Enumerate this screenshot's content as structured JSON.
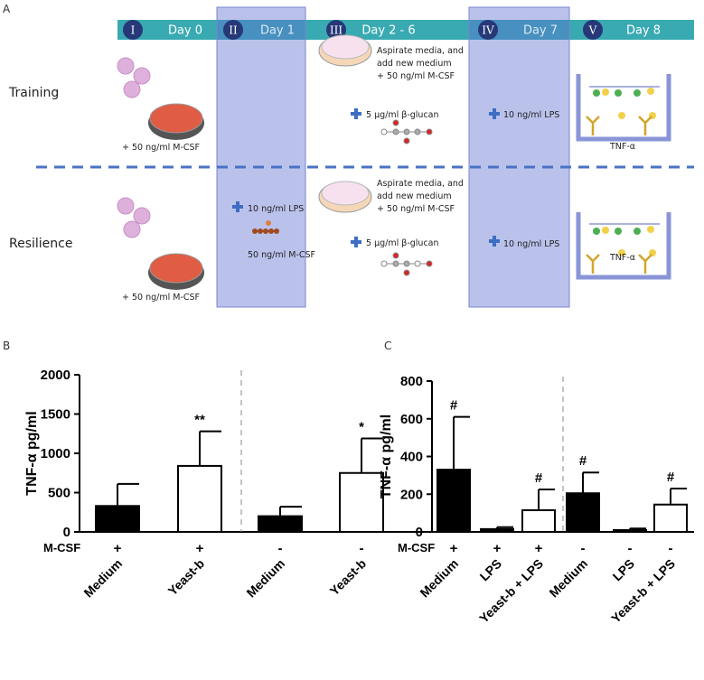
{
  "diagram": {
    "panel_label": "A",
    "timeline": [
      {
        "numeral": "I",
        "day": "Day 0"
      },
      {
        "numeral": "II",
        "day": "Day 1"
      },
      {
        "numeral": "III",
        "day": "Day 2 - 6"
      },
      {
        "numeral": "IV",
        "day": "Day 7"
      },
      {
        "numeral": "V",
        "day": "Day 8"
      }
    ],
    "rows": [
      {
        "label": "Training",
        "seed": "+ 50 ng/ml M-CSF",
        "aspirate": [
          "Aspirate media, and",
          "add new medium",
          "+ 50 ng/ml M-CSF"
        ],
        "glucan": "5 µg/ml β-glucan",
        "lps": "10 ng/ml LPS",
        "readout": "TNF-α"
      },
      {
        "label": "Resilience",
        "seed": "+ 50 ng/ml M-CSF",
        "day1_lps": "10 ng/ml LPS",
        "day1_mcsf": "50 ng/ml M-CSF",
        "aspirate": [
          "Aspirate media, and",
          "add new medium",
          "+ 50 ng/ml M-CSF"
        ],
        "glucan": "5 µg/ml β-glucan",
        "lps": "10 ng/ml LPS",
        "readout": "TNF-α"
      }
    ]
  },
  "chart_data": [
    {
      "type": "bar",
      "panel_label": "B",
      "y_label": "TNF-α pg/ml",
      "categories": [
        "Medium",
        "Yeast-b",
        "Medium",
        "Yeast-b"
      ],
      "values": [
        330,
        840,
        200,
        750
      ],
      "errors": [
        280,
        440,
        120,
        440
      ],
      "annotations": [
        null,
        "**",
        null,
        "*"
      ],
      "colors": [
        "#000000",
        "#ffffff",
        "#000000",
        "#ffffff"
      ],
      "condition": {
        "label": "M-CSF",
        "values": [
          "+",
          "+",
          "-",
          "-"
        ]
      },
      "ylim": [
        0,
        2000
      ],
      "yticks": [
        0,
        500,
        1000,
        1500,
        2000
      ]
    },
    {
      "type": "bar",
      "panel_label": "C",
      "y_label": "TNF-α pg/ml",
      "categories": [
        "Medium",
        "LPS",
        "Yeast-b + LPS",
        "Medium",
        "LPS",
        "Yeast-b + LPS"
      ],
      "values": [
        330,
        15,
        115,
        205,
        10,
        145
      ],
      "errors": [
        280,
        10,
        110,
        110,
        8,
        85
      ],
      "annotations": [
        "#",
        null,
        "#",
        "#",
        null,
        "#"
      ],
      "colors": [
        "#000000",
        "#000000",
        "#ffffff",
        "#000000",
        "#000000",
        "#ffffff"
      ],
      "condition": {
        "label": "M-CSF",
        "values": [
          "+",
          "+",
          "+",
          "-",
          "-",
          "-"
        ]
      },
      "ylim": [
        0,
        800
      ],
      "yticks": [
        0,
        200,
        400,
        600,
        800
      ]
    }
  ]
}
